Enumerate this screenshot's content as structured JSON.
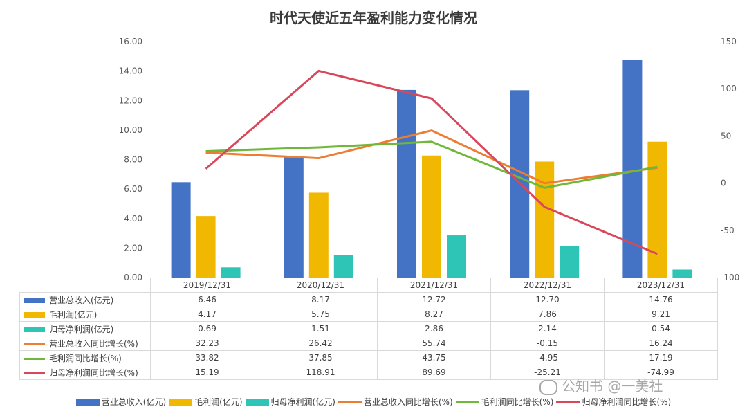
{
  "chart_data": {
    "type": "bar",
    "title": "时代天使近五年盈利能力变化情况",
    "categories": [
      "2019/12/31",
      "2020/12/31",
      "2021/12/31",
      "2022/12/31",
      "2023/12/31"
    ],
    "y_left": {
      "ylim": [
        0,
        16
      ],
      "ticks": [
        "0.00",
        "2.00",
        "4.00",
        "6.00",
        "8.00",
        "10.00",
        "12.00",
        "14.00",
        "16.00"
      ]
    },
    "y_right": {
      "ylim": [
        -100,
        150
      ],
      "ticks": [
        "-100",
        "-50",
        "0",
        "50",
        "100",
        "150"
      ]
    },
    "grid": false,
    "legend_position": "bottom",
    "series": [
      {
        "name": "营业总收入(亿元)",
        "kind": "bar",
        "axis": "left",
        "color": "#4472c4",
        "values": [
          6.46,
          8.17,
          12.72,
          12.7,
          14.76
        ],
        "labels": [
          "6.46",
          "8.17",
          "12.72",
          "12.70",
          "14.76"
        ]
      },
      {
        "name": "毛利润(亿元)",
        "kind": "bar",
        "axis": "left",
        "color": "#f0b800",
        "values": [
          4.17,
          5.75,
          8.27,
          7.86,
          9.21
        ],
        "labels": [
          "4.17",
          "5.75",
          "8.27",
          "7.86",
          "9.21"
        ]
      },
      {
        "name": "归母净利润(亿元)",
        "kind": "bar",
        "axis": "left",
        "color": "#2ec4b6",
        "values": [
          0.69,
          1.51,
          2.86,
          2.14,
          0.54
        ],
        "labels": [
          "0.69",
          "1.51",
          "2.86",
          "2.14",
          "0.54"
        ]
      },
      {
        "name": "营业总收入同比增长(%)",
        "kind": "line",
        "axis": "right",
        "color": "#ed7d31",
        "values": [
          32.23,
          26.42,
          55.74,
          -0.15,
          16.24
        ],
        "labels": [
          "32.23",
          "26.42",
          "55.74",
          "-0.15",
          "16.24"
        ]
      },
      {
        "name": "毛利润同比增长(%)",
        "kind": "line",
        "axis": "right",
        "color": "#70b83c",
        "values": [
          33.82,
          37.85,
          43.75,
          -4.95,
          17.19
        ],
        "labels": [
          "33.82",
          "37.85",
          "43.75",
          "-4.95",
          "17.19"
        ]
      },
      {
        "name": "归母净利润同比增长(%)",
        "kind": "line",
        "axis": "right",
        "color": "#d9475a",
        "values": [
          15.19,
          118.91,
          89.69,
          -25.21,
          -74.99
        ],
        "labels": [
          "15.19",
          "118.91",
          "89.69",
          "-25.21",
          "-74.99"
        ]
      }
    ]
  },
  "watermark": {
    "text": "公知书 @一美社"
  }
}
